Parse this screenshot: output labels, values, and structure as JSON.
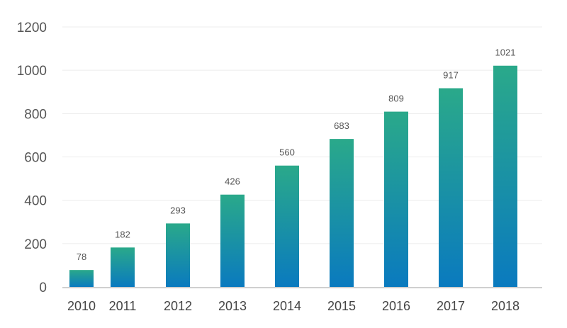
{
  "chart_data": {
    "type": "bar",
    "categories": [
      "2010",
      "2011",
      "2012",
      "2013",
      "2014",
      "2015",
      "2016",
      "2017",
      "2018"
    ],
    "values": [
      78,
      182,
      293,
      426,
      560,
      683,
      809,
      917,
      1021
    ],
    "data_labels": [
      "78",
      "182",
      "293",
      "426",
      "560",
      "683",
      "809",
      "917",
      "1021"
    ],
    "yticks": [
      "0",
      "200",
      "400",
      "600",
      "800",
      "1000",
      "1200"
    ],
    "ylim": [
      0,
      1200
    ],
    "title": "",
    "xlabel": "",
    "ylabel": "",
    "grid": true,
    "legend": "none",
    "colors": {
      "bar_top": "#2aa98a",
      "bar_bottom": "#0a7abf",
      "grid": "#ececec",
      "axis": "#cfcfcf"
    }
  }
}
